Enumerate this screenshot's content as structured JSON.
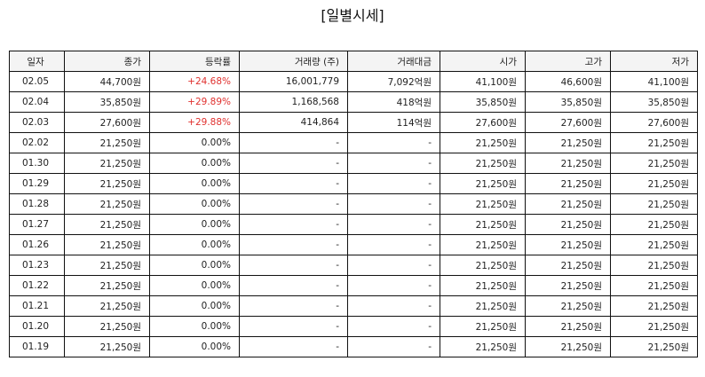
{
  "title": "[일별시세]",
  "colors": {
    "up": "#e0312f",
    "border": "#111111",
    "header_bg": "#f4f4f4"
  },
  "table": {
    "headers": [
      "일자",
      "종가",
      "등락률",
      "거래량 (주)",
      "거래대금",
      "시가",
      "고가",
      "저가"
    ],
    "rows": [
      {
        "date": "02.05",
        "close": "44,700원",
        "change": "+24.68%",
        "up": true,
        "volume": "16,001,779",
        "amount": "7,092억원",
        "open": "41,100원",
        "high": "46,600원",
        "low": "41,100원"
      },
      {
        "date": "02.04",
        "close": "35,850원",
        "change": "+29.89%",
        "up": true,
        "volume": "1,168,568",
        "amount": "418억원",
        "open": "35,850원",
        "high": "35,850원",
        "low": "35,850원"
      },
      {
        "date": "02.03",
        "close": "27,600원",
        "change": "+29.88%",
        "up": true,
        "volume": "414,864",
        "amount": "114억원",
        "open": "27,600원",
        "high": "27,600원",
        "low": "27,600원"
      },
      {
        "date": "02.02",
        "close": "21,250원",
        "change": "0.00%",
        "up": false,
        "volume": "-",
        "amount": "-",
        "open": "21,250원",
        "high": "21,250원",
        "low": "21,250원"
      },
      {
        "date": "01.30",
        "close": "21,250원",
        "change": "0.00%",
        "up": false,
        "volume": "-",
        "amount": "-",
        "open": "21,250원",
        "high": "21,250원",
        "low": "21,250원"
      },
      {
        "date": "01.29",
        "close": "21,250원",
        "change": "0.00%",
        "up": false,
        "volume": "-",
        "amount": "-",
        "open": "21,250원",
        "high": "21,250원",
        "low": "21,250원"
      },
      {
        "date": "01.28",
        "close": "21,250원",
        "change": "0.00%",
        "up": false,
        "volume": "-",
        "amount": "-",
        "open": "21,250원",
        "high": "21,250원",
        "low": "21,250원"
      },
      {
        "date": "01.27",
        "close": "21,250원",
        "change": "0.00%",
        "up": false,
        "volume": "-",
        "amount": "-",
        "open": "21,250원",
        "high": "21,250원",
        "low": "21,250원"
      },
      {
        "date": "01.26",
        "close": "21,250원",
        "change": "0.00%",
        "up": false,
        "volume": "-",
        "amount": "-",
        "open": "21,250원",
        "high": "21,250원",
        "low": "21,250원"
      },
      {
        "date": "01.23",
        "close": "21,250원",
        "change": "0.00%",
        "up": false,
        "volume": "-",
        "amount": "-",
        "open": "21,250원",
        "high": "21,250원",
        "low": "21,250원"
      },
      {
        "date": "01.22",
        "close": "21,250원",
        "change": "0.00%",
        "up": false,
        "volume": "-",
        "amount": "-",
        "open": "21,250원",
        "high": "21,250원",
        "low": "21,250원"
      },
      {
        "date": "01.21",
        "close": "21,250원",
        "change": "0.00%",
        "up": false,
        "volume": "-",
        "amount": "-",
        "open": "21,250원",
        "high": "21,250원",
        "low": "21,250원"
      },
      {
        "date": "01.20",
        "close": "21,250원",
        "change": "0.00%",
        "up": false,
        "volume": "-",
        "amount": "-",
        "open": "21,250원",
        "high": "21,250원",
        "low": "21,250원"
      },
      {
        "date": "01.19",
        "close": "21,250원",
        "change": "0.00%",
        "up": false,
        "volume": "-",
        "amount": "-",
        "open": "21,250원",
        "high": "21,250원",
        "low": "21,250원"
      }
    ]
  }
}
